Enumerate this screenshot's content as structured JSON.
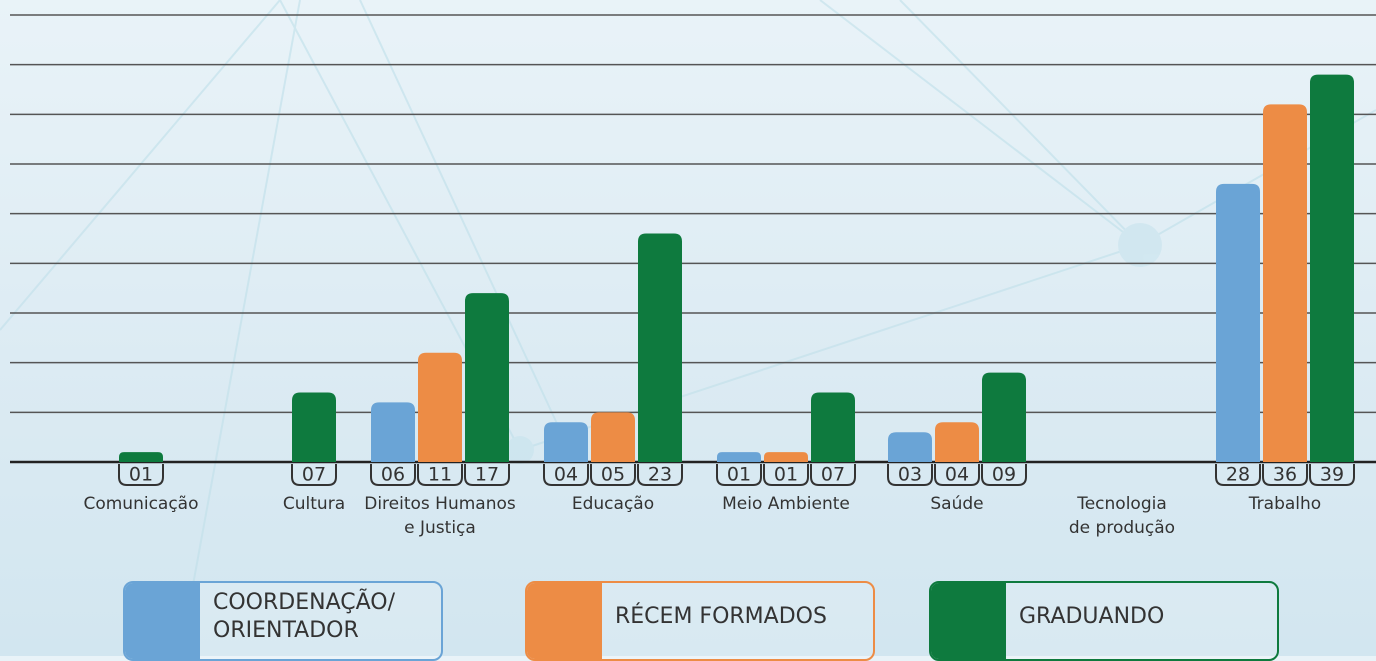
{
  "chart_data": {
    "type": "bar",
    "categories": [
      "Comunicação",
      "Cultura",
      "Direitos Humanos\ne Justiça",
      "Educação",
      "Meio Ambiente",
      "Saúde",
      "Tecnologia\nde produção",
      "Trabalho"
    ],
    "series": [
      {
        "name": "COORDENAÇÃO/\nORIENTADOR",
        "color": "#6aa4d6",
        "values": [
          null,
          null,
          6,
          4,
          1,
          3,
          null,
          28
        ],
        "value_labels": [
          null,
          null,
          "06",
          "04",
          "01",
          "03",
          null,
          "28"
        ]
      },
      {
        "name": "RÉCEM FORMADOS",
        "color": "#ed8c45",
        "values": [
          null,
          null,
          11,
          5,
          1,
          4,
          null,
          36
        ],
        "value_labels": [
          null,
          null,
          "11",
          "05",
          "01",
          "04",
          null,
          "36"
        ]
      },
      {
        "name": "GRADUANDO",
        "color": "#0e7a3e",
        "values": [
          1,
          7,
          17,
          23,
          7,
          9,
          null,
          39
        ],
        "value_labels": [
          "01",
          "07",
          "17",
          "23",
          "07",
          "09",
          null,
          "39"
        ]
      }
    ],
    "ylim": [
      0,
      45
    ],
    "yticks": [
      0,
      5,
      10,
      15,
      20,
      25,
      30,
      35,
      40,
      45
    ],
    "grid": true
  }
}
